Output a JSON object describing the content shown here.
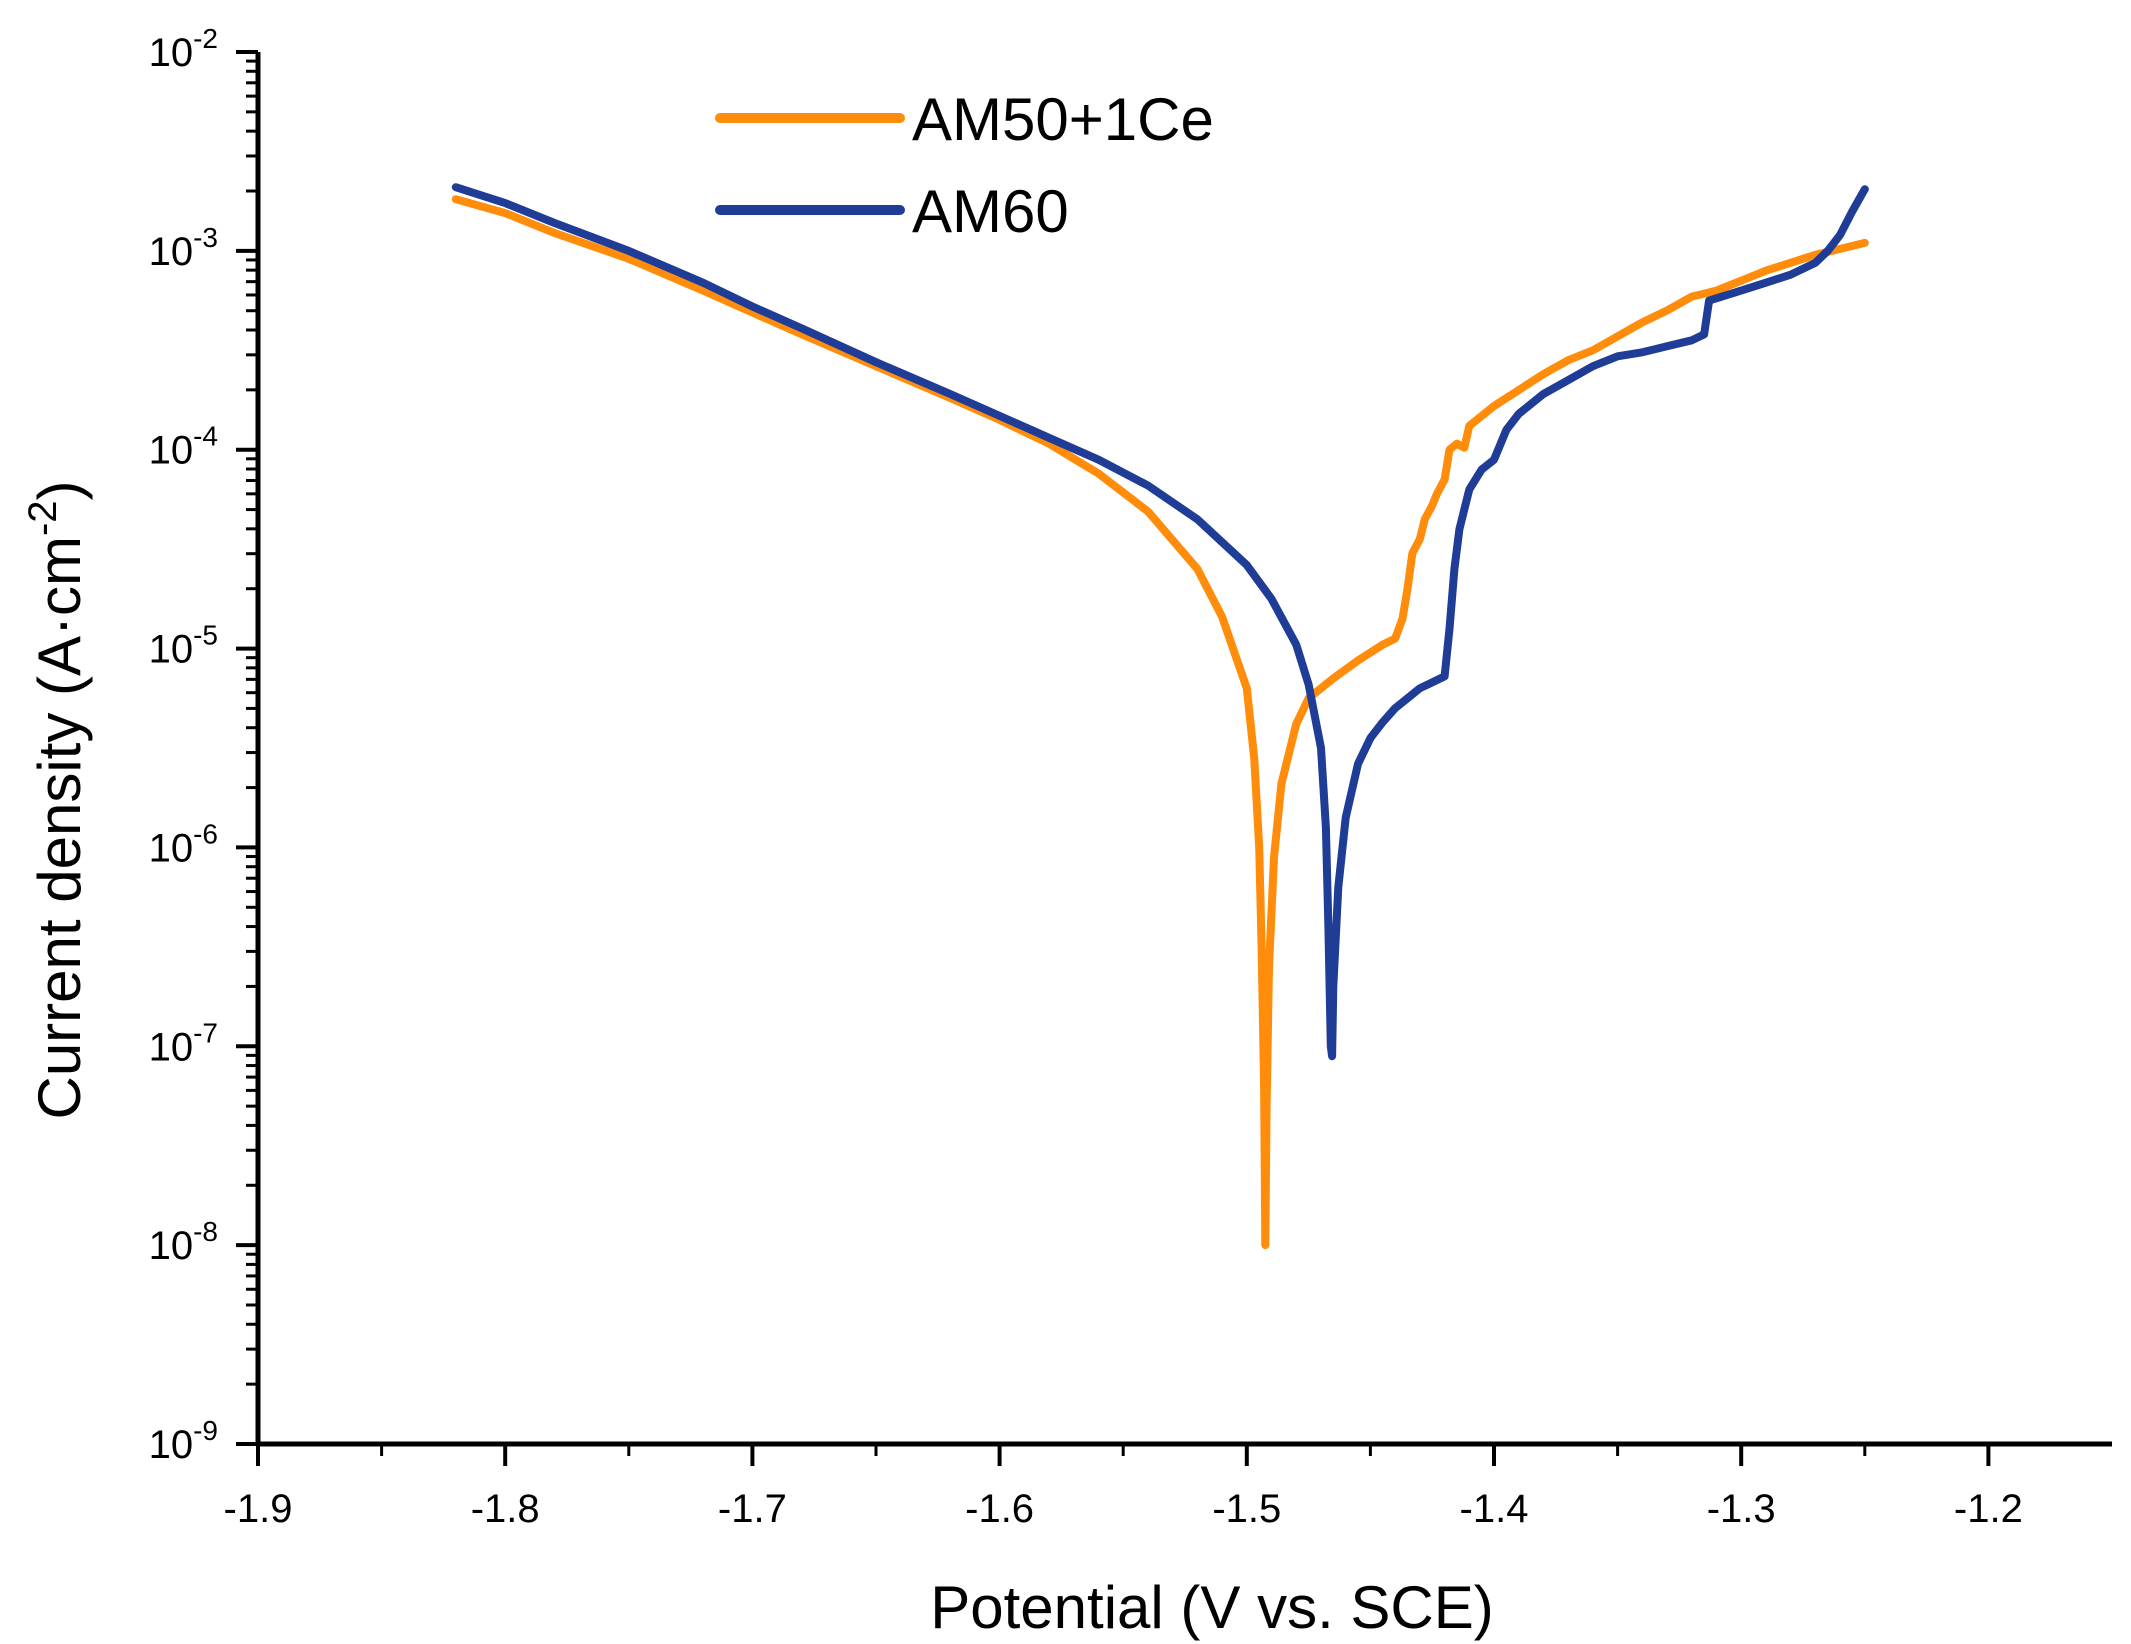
{
  "chart_data": {
    "type": "line",
    "xlabel": "Potential (V vs. SCE)",
    "ylabel": {
      "prefix": "Current density (A·cm",
      "superscript": "-2",
      "suffix": ")"
    },
    "y_scale": "log",
    "xlim": [
      -1.9,
      -1.15
    ],
    "ylim_exp": [
      -9,
      -2
    ],
    "x_ticks": [
      {
        "value": -1.9,
        "label": "-1.9"
      },
      {
        "value": -1.8,
        "label": "-1.8"
      },
      {
        "value": -1.7,
        "label": "-1.7"
      },
      {
        "value": -1.6,
        "label": "-1.6"
      },
      {
        "value": -1.5,
        "label": "-1.5"
      },
      {
        "value": -1.4,
        "label": "-1.4"
      },
      {
        "value": -1.3,
        "label": "-1.3"
      },
      {
        "value": -1.2,
        "label": "-1.2"
      }
    ],
    "y_ticks": [
      {
        "exp": -9,
        "base": "10",
        "sup": "-9"
      },
      {
        "exp": -8,
        "base": "10",
        "sup": "-8"
      },
      {
        "exp": -7,
        "base": "10",
        "sup": "-7"
      },
      {
        "exp": -6,
        "base": "10",
        "sup": "-6"
      },
      {
        "exp": -5,
        "base": "10",
        "sup": "-5"
      },
      {
        "exp": -4,
        "base": "10",
        "sup": "-4"
      },
      {
        "exp": -3,
        "base": "10",
        "sup": "-3"
      },
      {
        "exp": -2,
        "base": "10",
        "sup": "-2"
      }
    ],
    "legend_position": "top-center",
    "series": [
      {
        "name": "AM50+1Ce",
        "color": "#FF8C0A",
        "points": [
          [
            -1.82,
            -2.74
          ],
          [
            -1.8,
            -2.81
          ],
          [
            -1.78,
            -2.91
          ],
          [
            -1.75,
            -3.04
          ],
          [
            -1.72,
            -3.2
          ],
          [
            -1.7,
            -3.31
          ],
          [
            -1.68,
            -3.42
          ],
          [
            -1.65,
            -3.58
          ],
          [
            -1.62,
            -3.74
          ],
          [
            -1.6,
            -3.85
          ],
          [
            -1.58,
            -3.97
          ],
          [
            -1.56,
            -4.12
          ],
          [
            -1.54,
            -4.31
          ],
          [
            -1.52,
            -4.6
          ],
          [
            -1.51,
            -4.84
          ],
          [
            -1.5,
            -5.2
          ],
          [
            -1.497,
            -5.55
          ],
          [
            -1.495,
            -6.0
          ],
          [
            -1.494,
            -6.5
          ],
          [
            -1.493,
            -7.2
          ],
          [
            -1.4925,
            -8.0
          ],
          [
            -1.492,
            -7.3
          ],
          [
            -1.491,
            -6.6
          ],
          [
            -1.489,
            -6.05
          ],
          [
            -1.486,
            -5.68
          ],
          [
            -1.48,
            -5.38
          ],
          [
            -1.475,
            -5.25
          ],
          [
            -1.465,
            -5.15
          ],
          [
            -1.455,
            -5.06
          ],
          [
            -1.445,
            -4.98
          ],
          [
            -1.44,
            -4.95
          ],
          [
            -1.437,
            -4.85
          ],
          [
            -1.435,
            -4.7
          ],
          [
            -1.433,
            -4.52
          ],
          [
            -1.43,
            -4.45
          ],
          [
            -1.428,
            -4.35
          ],
          [
            -1.425,
            -4.28
          ],
          [
            -1.423,
            -4.22
          ],
          [
            -1.42,
            -4.15
          ],
          [
            -1.418,
            -4.0
          ],
          [
            -1.415,
            -3.97
          ],
          [
            -1.412,
            -3.99
          ],
          [
            -1.41,
            -3.88
          ],
          [
            -1.4,
            -3.78
          ],
          [
            -1.39,
            -3.7
          ],
          [
            -1.38,
            -3.62
          ],
          [
            -1.37,
            -3.55
          ],
          [
            -1.36,
            -3.5
          ],
          [
            -1.35,
            -3.43
          ],
          [
            -1.34,
            -3.36
          ],
          [
            -1.33,
            -3.3
          ],
          [
            -1.32,
            -3.23
          ],
          [
            -1.31,
            -3.2
          ],
          [
            -1.3,
            -3.15
          ],
          [
            -1.29,
            -3.1
          ],
          [
            -1.28,
            -3.06
          ],
          [
            -1.27,
            -3.02
          ],
          [
            -1.26,
            -2.99
          ],
          [
            -1.25,
            -2.96
          ]
        ]
      },
      {
        "name": "AM60",
        "color": "#1F3C96",
        "points": [
          [
            -1.82,
            -2.68
          ],
          [
            -1.8,
            -2.76
          ],
          [
            -1.78,
            -2.86
          ],
          [
            -1.75,
            -3.0
          ],
          [
            -1.72,
            -3.16
          ],
          [
            -1.7,
            -3.28
          ],
          [
            -1.68,
            -3.39
          ],
          [
            -1.65,
            -3.56
          ],
          [
            -1.62,
            -3.72
          ],
          [
            -1.6,
            -3.83
          ],
          [
            -1.58,
            -3.94
          ],
          [
            -1.56,
            -4.05
          ],
          [
            -1.54,
            -4.18
          ],
          [
            -1.52,
            -4.35
          ],
          [
            -1.5,
            -4.58
          ],
          [
            -1.49,
            -4.75
          ],
          [
            -1.48,
            -4.98
          ],
          [
            -1.475,
            -5.18
          ],
          [
            -1.47,
            -5.5
          ],
          [
            -1.468,
            -5.9
          ],
          [
            -1.467,
            -6.4
          ],
          [
            -1.466,
            -7.0
          ],
          [
            -1.4655,
            -7.05
          ],
          [
            -1.465,
            -6.7
          ],
          [
            -1.463,
            -6.2
          ],
          [
            -1.46,
            -5.85
          ],
          [
            -1.455,
            -5.58
          ],
          [
            -1.45,
            -5.45
          ],
          [
            -1.445,
            -5.37
          ],
          [
            -1.44,
            -5.3
          ],
          [
            -1.435,
            -5.25
          ],
          [
            -1.43,
            -5.2
          ],
          [
            -1.425,
            -5.17
          ],
          [
            -1.42,
            -5.14
          ],
          [
            -1.418,
            -4.9
          ],
          [
            -1.416,
            -4.6
          ],
          [
            -1.414,
            -4.4
          ],
          [
            -1.412,
            -4.3
          ],
          [
            -1.41,
            -4.2
          ],
          [
            -1.405,
            -4.1
          ],
          [
            -1.4,
            -4.05
          ],
          [
            -1.395,
            -3.9
          ],
          [
            -1.39,
            -3.82
          ],
          [
            -1.38,
            -3.72
          ],
          [
            -1.37,
            -3.65
          ],
          [
            -1.36,
            -3.58
          ],
          [
            -1.35,
            -3.53
          ],
          [
            -1.34,
            -3.51
          ],
          [
            -1.33,
            -3.48
          ],
          [
            -1.32,
            -3.45
          ],
          [
            -1.315,
            -3.42
          ],
          [
            -1.313,
            -3.25
          ],
          [
            -1.3,
            -3.2
          ],
          [
            -1.29,
            -3.16
          ],
          [
            -1.28,
            -3.12
          ],
          [
            -1.27,
            -3.06
          ],
          [
            -1.265,
            -3.0
          ],
          [
            -1.26,
            -2.92
          ],
          [
            -1.255,
            -2.8
          ],
          [
            -1.25,
            -2.69
          ]
        ]
      }
    ]
  }
}
